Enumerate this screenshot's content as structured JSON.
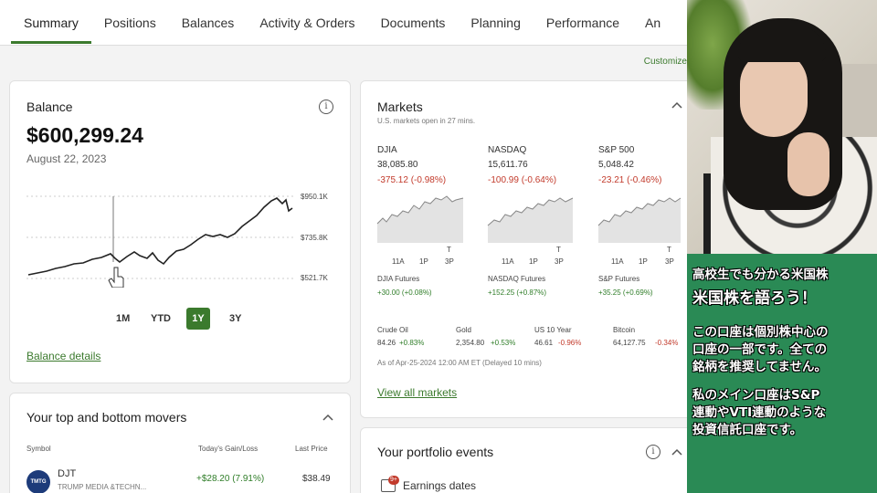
{
  "nav": {
    "tabs": [
      "Summary",
      "Positions",
      "Balances",
      "Activity & Orders",
      "Documents",
      "Planning",
      "Performance",
      "An"
    ],
    "customize": "Customize"
  },
  "balance": {
    "title": "Balance",
    "amount": "$600,299.24",
    "date": "August 22, 2023",
    "ticks": [
      "$950.1K",
      "$735.8K",
      "$521.7K"
    ],
    "ranges": [
      "1M",
      "YTD",
      "1Y",
      "3Y"
    ],
    "active_range": "1Y",
    "details_link": "Balance details"
  },
  "movers": {
    "title": "Your top and bottom movers",
    "headers": [
      "Symbol",
      "Today's Gain/Loss",
      "Last Price"
    ],
    "rows": [
      {
        "logo": "TMTG",
        "symbol": "DJT",
        "name": "TRUMP MEDIA &TECHN...",
        "gain": "+$28.20 (7.91%)",
        "price": "$38.49"
      }
    ]
  },
  "markets": {
    "title": "Markets",
    "subtitle": "U.S. markets open in 27 mins.",
    "indices": [
      {
        "name": "DJIA",
        "value": "38,085.80",
        "change": "-375.12 (-0.98%)",
        "futures": "DJIA Futures",
        "futures_change": "+30.00 (+0.08%)"
      },
      {
        "name": "NASDAQ",
        "value": "15,611.76",
        "change": "-100.99 (-0.64%)",
        "futures": "NASDAQ Futures",
        "futures_change": "+152.25 (+0.87%)"
      },
      {
        "name": "S&P 500",
        "value": "5,048.42",
        "change": "-23.21 (-0.46%)",
        "futures": "S&P Futures",
        "futures_change": "+35.25 (+0.69%)"
      }
    ],
    "mini_axis": [
      "11A",
      "1P",
      "3P"
    ],
    "mini_axis_top": "T",
    "commodities": [
      {
        "name": "Crude Oil",
        "value": "84.26",
        "change": "+0.83%"
      },
      {
        "name": "Gold",
        "value": "2,354.80",
        "change": "+0.53%"
      },
      {
        "name": "US 10 Year",
        "value": "46.61",
        "change": "-0.96%"
      },
      {
        "name": "Bitcoin",
        "value": "64,127.75",
        "change": "-0.34%"
      }
    ],
    "asof": "As of Apr-25-2024 12:00 AM ET (Delayed 10 mins)",
    "view_all": "View all markets"
  },
  "events": {
    "title": "Your portfolio events",
    "item": "Earnings dates",
    "badge": "9+"
  },
  "overlay": {
    "line1": "高校生でも分かる米国株",
    "line2": "米国株を語ろう！",
    "para1": [
      "この口座は個別株中心の",
      "口座の一部です。全ての",
      "銘柄を推奨してません。"
    ],
    "para2": [
      "私のメイン口座はS&P",
      "連動やVTI連動のような",
      "投資信託口座です。"
    ]
  },
  "colors": {
    "accent": "#3b7a2d",
    "negative": "#c23a2b",
    "positive": "#2f7d28",
    "panel": "#2a8a55"
  }
}
